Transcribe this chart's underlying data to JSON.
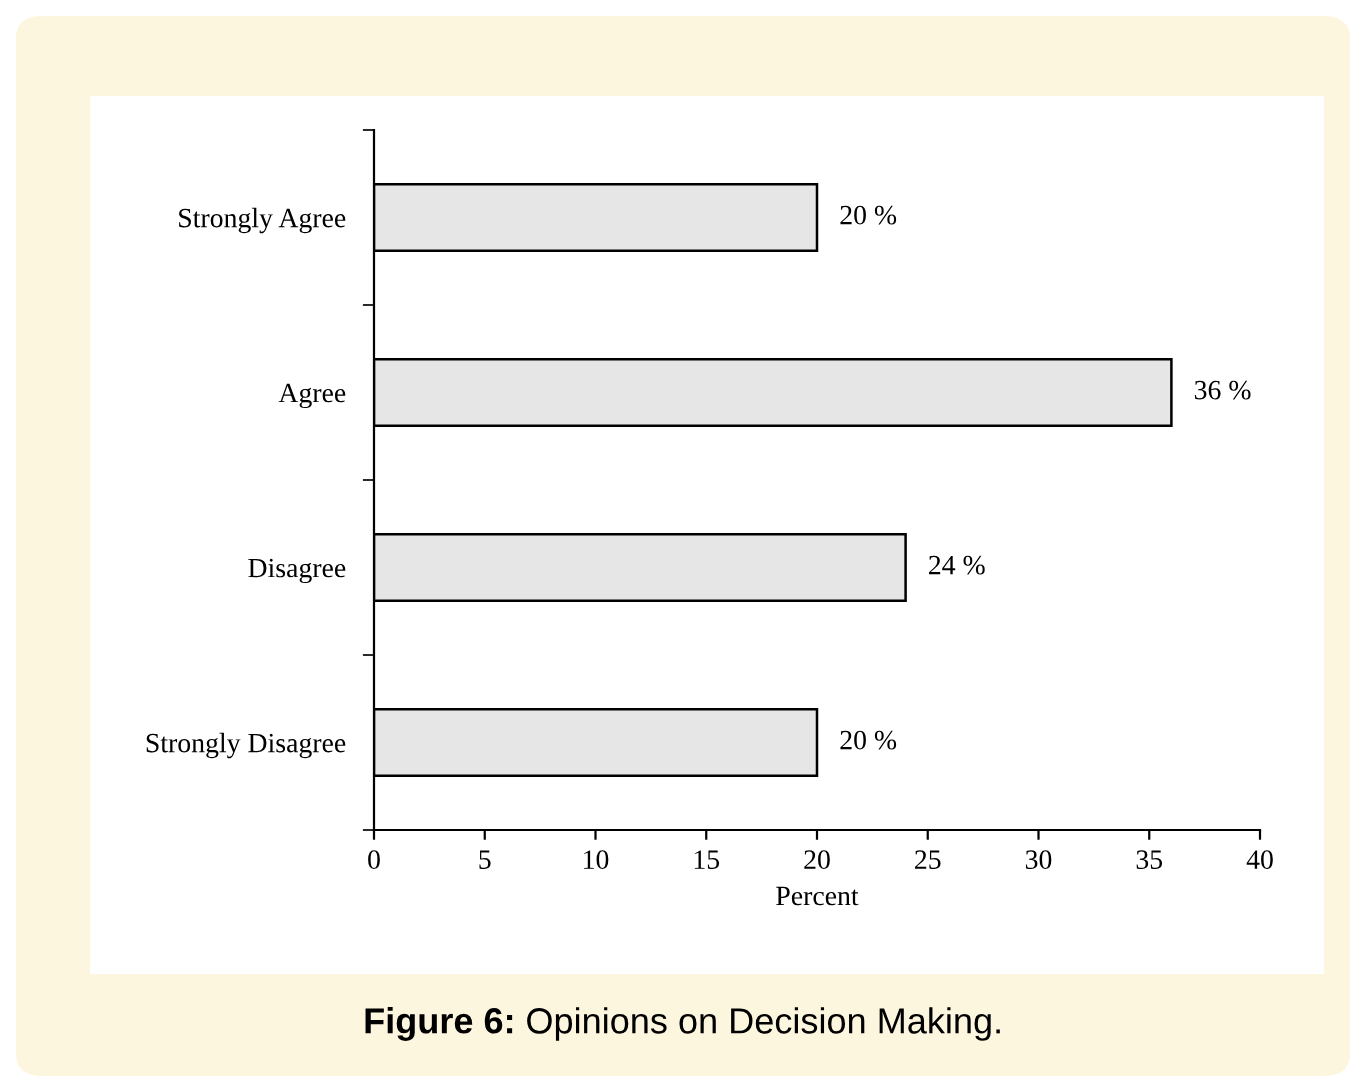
{
  "chart_data": {
    "type": "bar",
    "orientation": "horizontal",
    "categories": [
      "Strongly Agree",
      "Agree",
      "Disagree",
      "Strongly Disagree"
    ],
    "values": [
      20,
      36,
      24,
      20
    ],
    "value_labels": [
      "20 %",
      "36 %",
      "24 %",
      "20 %"
    ],
    "color": "#e6e6e6",
    "xlabel": "Percent",
    "xlim": [
      0,
      40
    ],
    "xticks": [
      0,
      5,
      10,
      15,
      20,
      25,
      30,
      35,
      40
    ],
    "grid": false,
    "legend": false,
    "annotations": [
      "Figure 6: Opinions on Decision Making."
    ]
  }
}
